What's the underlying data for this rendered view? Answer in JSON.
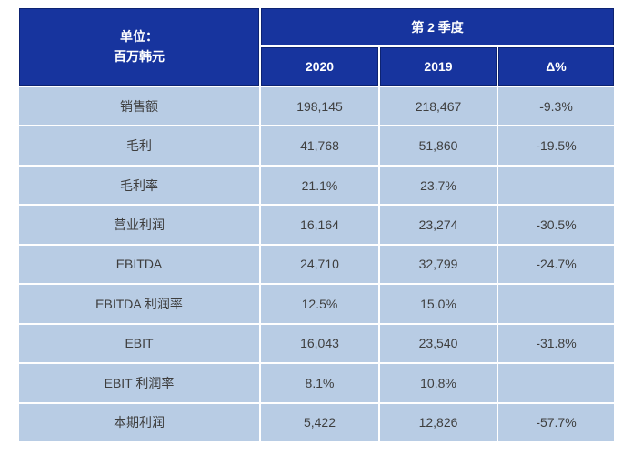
{
  "table": {
    "unit_line1": "单位：",
    "unit_line2": "百万韩元",
    "period_header": "第 2 季度",
    "col_headers": [
      "2020",
      "2019",
      "Δ%"
    ],
    "rows": [
      {
        "label": "销售额",
        "y2020": "198,145",
        "y2019": "218,467",
        "delta": "-9.3%"
      },
      {
        "label": "毛利",
        "y2020": "41,768",
        "y2019": "51,860",
        "delta": "-19.5%"
      },
      {
        "label": "毛利率",
        "y2020": "21.1%",
        "y2019": "23.7%",
        "delta": ""
      },
      {
        "label": "营业利润",
        "y2020": "16,164",
        "y2019": "23,274",
        "delta": "-30.5%"
      },
      {
        "label": "EBITDA",
        "y2020": "24,710",
        "y2019": "32,799",
        "delta": "-24.7%"
      },
      {
        "label": "EBITDA 利润率",
        "y2020": "12.5%",
        "y2019": "15.0%",
        "delta": ""
      },
      {
        "label": "EBIT",
        "y2020": "16,043",
        "y2019": "23,540",
        "delta": "-31.8%"
      },
      {
        "label": "EBIT 利润率",
        "y2020": "8.1%",
        "y2019": "10.8%",
        "delta": ""
      },
      {
        "label": "本期利润",
        "y2020": "5,422",
        "y2019": "12,826",
        "delta": "-57.7%"
      }
    ],
    "colors": {
      "header_bg": "#17349E",
      "header_border": "#0D2372",
      "header_text": "#FFFFFF",
      "body_bg": "#B8CCE4",
      "body_text": "#3E3E3E",
      "grid_gap": "#FFFFFF"
    }
  },
  "chart_data": {
    "type": "table",
    "title": "第 2 季度",
    "unit": "单位：百万韩元",
    "categories": [
      "销售额",
      "毛利",
      "毛利率",
      "营业利润",
      "EBITDA",
      "EBITDA 利润率",
      "EBIT",
      "EBIT 利润率",
      "本期利润"
    ],
    "series": [
      {
        "name": "2020",
        "values": [
          "198,145",
          "41,768",
          "21.1%",
          "16,164",
          "24,710",
          "12.5%",
          "16,043",
          "8.1%",
          "5,422"
        ]
      },
      {
        "name": "2019",
        "values": [
          "218,467",
          "51,860",
          "23.7%",
          "23,274",
          "32,799",
          "15.0%",
          "23,540",
          "10.8%",
          "12,826"
        ]
      },
      {
        "name": "Δ%",
        "values": [
          "-9.3%",
          "-19.5%",
          "",
          "-30.5%",
          "-24.7%",
          "",
          "-31.8%",
          "",
          "-57.7%"
        ]
      }
    ],
    "legend_position": "none",
    "grid": true
  }
}
